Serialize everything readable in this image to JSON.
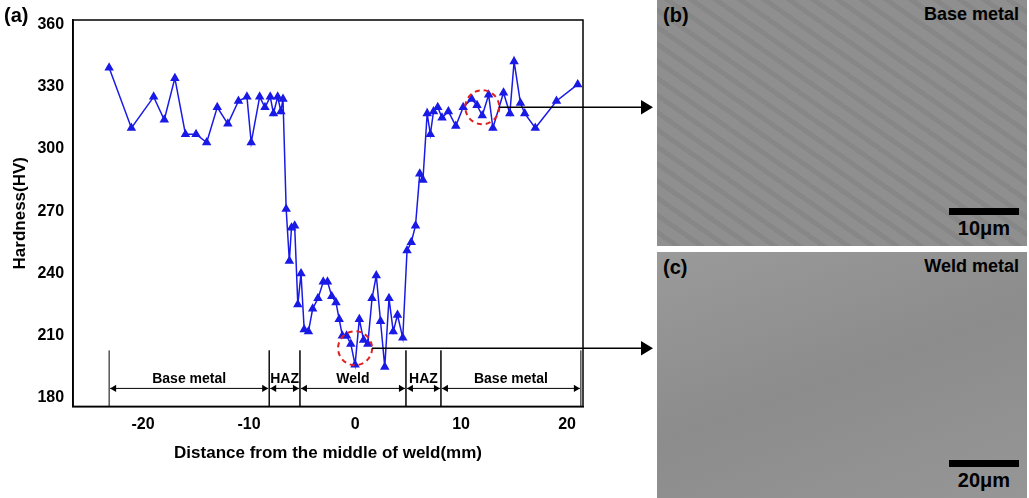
{
  "chart_data": {
    "type": "line",
    "panel_label": "(a)",
    "x_label": "Distance from the middle of weld(mm)",
    "y_label": "Hardness(HV)",
    "color": "#1a1ae6",
    "marker": "triangle",
    "line_style": "solid",
    "grid": false,
    "xlim": [
      -26.6,
      21.5
    ],
    "xticks": [
      -20,
      -10,
      0,
      10,
      20
    ],
    "ylim": [
      176,
      362
    ],
    "yticks": [
      180,
      210,
      240,
      270,
      300,
      330,
      360
    ],
    "x": [
      -23.2,
      -21.1,
      -19,
      -18,
      -17,
      -16,
      -15,
      -14,
      -13,
      -12,
      -11,
      -10.2,
      -9.8,
      -9,
      -8.5,
      -8,
      -7.7,
      -7.3,
      -7,
      -6.8,
      -6.5,
      -6.2,
      -6,
      -5.7,
      -5.4,
      -5.1,
      -4.8,
      -4.4,
      -4,
      -3.5,
      -3,
      -2.6,
      -2.2,
      -1.8,
      -1.5,
      -1.2,
      -0.8,
      -0.4,
      0,
      0.4,
      0.8,
      1.2,
      1.6,
      2,
      2.4,
      2.8,
      3.2,
      3.6,
      4,
      4.5,
      4.9,
      5.3,
      5.7,
      6.1,
      6.4,
      6.8,
      7.1,
      7.4,
      7.8,
      8.2,
      8.8,
      9.5,
      10.2,
      11,
      11.5,
      12,
      12.6,
      13,
      14,
      14.6,
      15,
      15.6,
      16,
      17,
      19,
      21
    ],
    "values": [
      339,
      310,
      325,
      314,
      334,
      307,
      307,
      303,
      320,
      312,
      323,
      325,
      303,
      325,
      320,
      325,
      317,
      325,
      318,
      324,
      271,
      246,
      262,
      263,
      225,
      240,
      213,
      212,
      223,
      228,
      236,
      236,
      229,
      226,
      218,
      210,
      210,
      206,
      196,
      218,
      208,
      206,
      228,
      239,
      217,
      195,
      228,
      212,
      220,
      209,
      251,
      255,
      263,
      288,
      285,
      317,
      307,
      318,
      320,
      315,
      318,
      311,
      320,
      324,
      321,
      316,
      326,
      310,
      327,
      317,
      342,
      322,
      317,
      310,
      323,
      331
    ],
    "zones": [
      {
        "label": "Base metal",
        "from": -23.2,
        "to": -8.1
      },
      {
        "label": "HAZ",
        "from": -8.1,
        "to": -5.2
      },
      {
        "label": "Weld",
        "from": -5.2,
        "to": 4.8
      },
      {
        "label": "HAZ",
        "from": 4.8,
        "to": 8.1
      },
      {
        "label": "Base metal",
        "from": 8.1,
        "to": 21.3
      }
    ],
    "highlights": [
      {
        "x": 12,
        "y": 320,
        "panel": "(b)"
      },
      {
        "x": 0,
        "y": 204,
        "panel": "(c)"
      }
    ]
  },
  "panels": [
    {
      "label": "(b)",
      "title": "Base metal",
      "scale_bar": "10μm"
    },
    {
      "label": "(c)",
      "title": "Weld metal",
      "scale_bar": "20μm"
    }
  ]
}
